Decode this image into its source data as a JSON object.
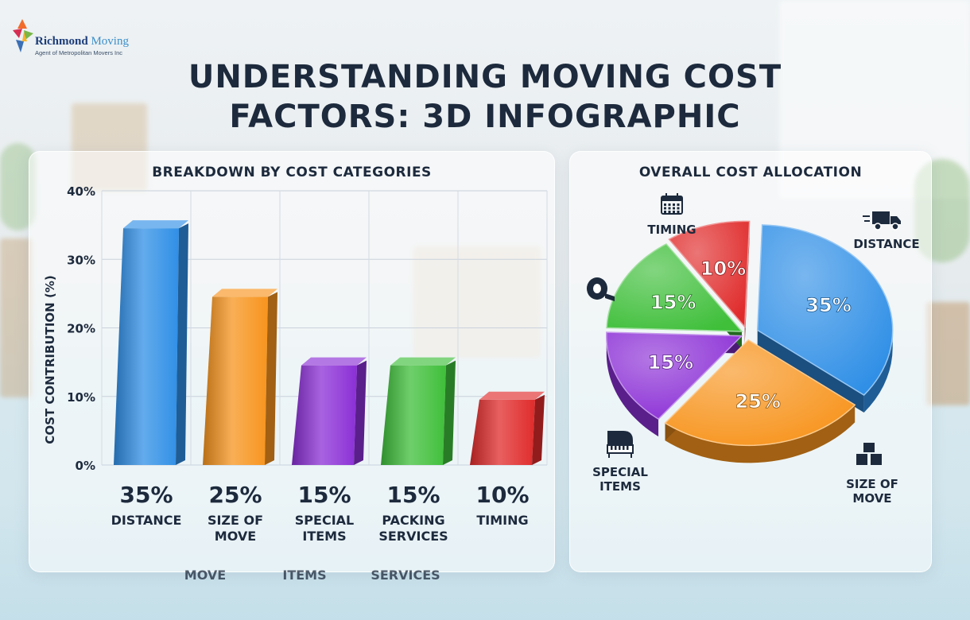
{
  "brand": {
    "name_part1": "Richmond",
    "name_part2": "Moving",
    "tagline": "Agent of Metropolitan Movers Inc"
  },
  "title_line1": "UNDERSTANDING MOVING COST",
  "title_line2": "FACTORS: 3D INFOGRAPHIC",
  "colors": {
    "blue": "#2f8fe6",
    "orange": "#f7941d",
    "purple": "#8b2fd6",
    "green": "#3fbf3a",
    "red": "#e02b2b"
  },
  "chart_data": [
    {
      "type": "bar",
      "title": "BREAKDOWN BY COST CATEGORIES",
      "ylabel": "COST CONTRIBUTION (%)",
      "xlabel": "",
      "ylim": [
        0,
        40
      ],
      "yticks": [
        "0%",
        "10%",
        "20%",
        "30%",
        "40%"
      ],
      "grid": true,
      "categories": [
        "DISTANCE",
        "SIZE OF MOVE",
        "SPECIAL ITEMS",
        "PACKING SERVICES",
        "TIMING"
      ],
      "category_lines": [
        [
          "DISTANCE"
        ],
        [
          "SIZE OF",
          "MOVE"
        ],
        [
          "SPECIAL",
          "ITEMS"
        ],
        [
          "PACKING",
          "SERVICES"
        ],
        [
          "TIMING"
        ]
      ],
      "values": [
        35,
        25,
        15,
        15,
        10
      ],
      "value_labels": [
        "35%",
        "25%",
        "15%",
        "15%",
        "10%"
      ],
      "colors": [
        "#2f8fe6",
        "#f7941d",
        "#8b2fd6",
        "#3fbf3a",
        "#e02b2b"
      ],
      "reflection_labels": [
        "MOVE",
        "ITEMS",
        "SERVICES"
      ]
    },
    {
      "type": "pie",
      "title": "OVERALL COST ALLOCATION",
      "slices": [
        {
          "label": "DISTANCE",
          "label_lines": [
            "DISTANCE"
          ],
          "value": 35,
          "value_label": "35%",
          "color": "#2f8fe6",
          "icon": "truck-icon"
        },
        {
          "label": "SIZE OF MOVE",
          "label_lines": [
            "SIZE OF",
            "MOVE"
          ],
          "value": 25,
          "value_label": "25%",
          "color": "#f7941d",
          "icon": "boxes-icon"
        },
        {
          "label": "SPECIAL ITEMS",
          "label_lines": [
            "SPECIAL",
            "ITEMS"
          ],
          "value": 15,
          "value_label": "15%",
          "color": "#8b2fd6",
          "icon": "piano-icon"
        },
        {
          "label": "",
          "label_lines": [],
          "value": 15,
          "value_label": "15%",
          "color": "#3fbf3a",
          "icon": "tape-icon"
        },
        {
          "label": "TIMING",
          "label_lines": [
            "TIMING"
          ],
          "value": 10,
          "value_label": "10%",
          "color": "#e02b2b",
          "icon": "calendar-icon"
        }
      ]
    }
  ]
}
